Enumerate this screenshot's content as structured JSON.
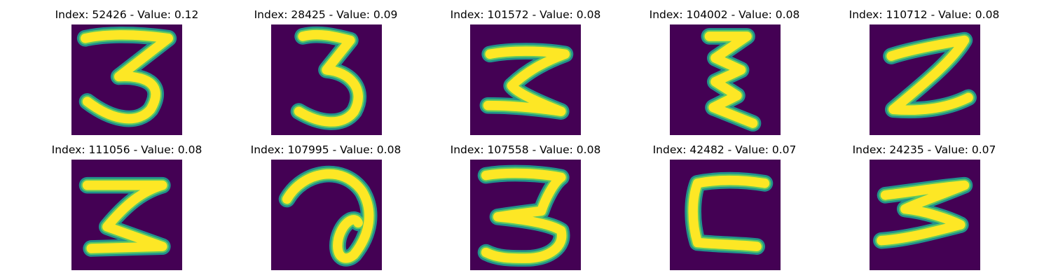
{
  "figure": {
    "colors": {
      "background": "#440154",
      "stroke_outer": "#21918c",
      "stroke_mid": "#5ec962",
      "stroke_core": "#fde725"
    },
    "panels": [
      {
        "title": "Index: 52426 - Value: 0.12",
        "index": 52426,
        "value": 0.12,
        "glyph": "3"
      },
      {
        "title": "Index: 28425 - Value: 0.09",
        "index": 28425,
        "value": 0.09,
        "glyph": "3"
      },
      {
        "title": "Index: 101572 - Value: 0.08",
        "index": 101572,
        "value": 0.08,
        "glyph": "z-shape"
      },
      {
        "title": "Index: 104002 - Value: 0.08",
        "index": 104002,
        "value": 0.08,
        "glyph": "zigzag"
      },
      {
        "title": "Index: 110712 - Value: 0.08",
        "index": 110712,
        "value": 0.08,
        "glyph": "2-shape"
      },
      {
        "title": "Index: 111056 - Value: 0.08",
        "index": 111056,
        "value": 0.08,
        "glyph": "z-shape"
      },
      {
        "title": "Index: 107995 - Value: 0.08",
        "index": 107995,
        "value": 0.08,
        "glyph": "a-loop"
      },
      {
        "title": "Index: 107558 - Value: 0.08",
        "index": 107558,
        "value": 0.08,
        "glyph": "3"
      },
      {
        "title": "Index: 42482 - Value: 0.07",
        "index": 42482,
        "value": 0.07,
        "glyph": "c-shape"
      },
      {
        "title": "Index: 24235 - Value: 0.07",
        "index": 24235,
        "value": 0.07,
        "glyph": "z-shape"
      }
    ]
  }
}
